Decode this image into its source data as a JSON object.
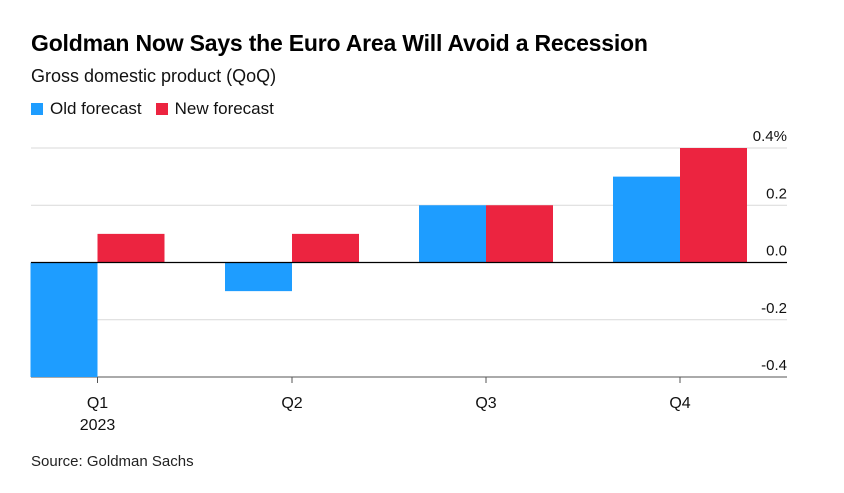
{
  "title": "Goldman Now Says the Euro Area Will Avoid a Recession",
  "subtitle": "Gross domestic product (QoQ)",
  "source": "Source: Goldman Sachs",
  "colors": {
    "old": "#1e9dff",
    "new": "#ec2440",
    "grid": "#d9d9d9",
    "zero": "#000000"
  },
  "chart_data": {
    "type": "bar",
    "categories": [
      "Q1",
      "Q2",
      "Q3",
      "Q4"
    ],
    "category_sublabels": [
      "2023",
      "",
      "",
      ""
    ],
    "series": [
      {
        "name": "Old forecast",
        "values": [
          -0.4,
          -0.1,
          0.2,
          0.3
        ]
      },
      {
        "name": "New forecast",
        "values": [
          0.1,
          0.1,
          0.2,
          0.4
        ]
      }
    ],
    "yticks": [
      0.4,
      0.2,
      0.0,
      -0.2,
      -0.4
    ],
    "ytick_labels": [
      "0.4%",
      "0.2",
      "0.0",
      "-0.2",
      "-0.4"
    ],
    "ylim": [
      -0.4,
      0.4
    ],
    "grid": true,
    "legend_position": "top-left",
    "axis_position": "right"
  }
}
